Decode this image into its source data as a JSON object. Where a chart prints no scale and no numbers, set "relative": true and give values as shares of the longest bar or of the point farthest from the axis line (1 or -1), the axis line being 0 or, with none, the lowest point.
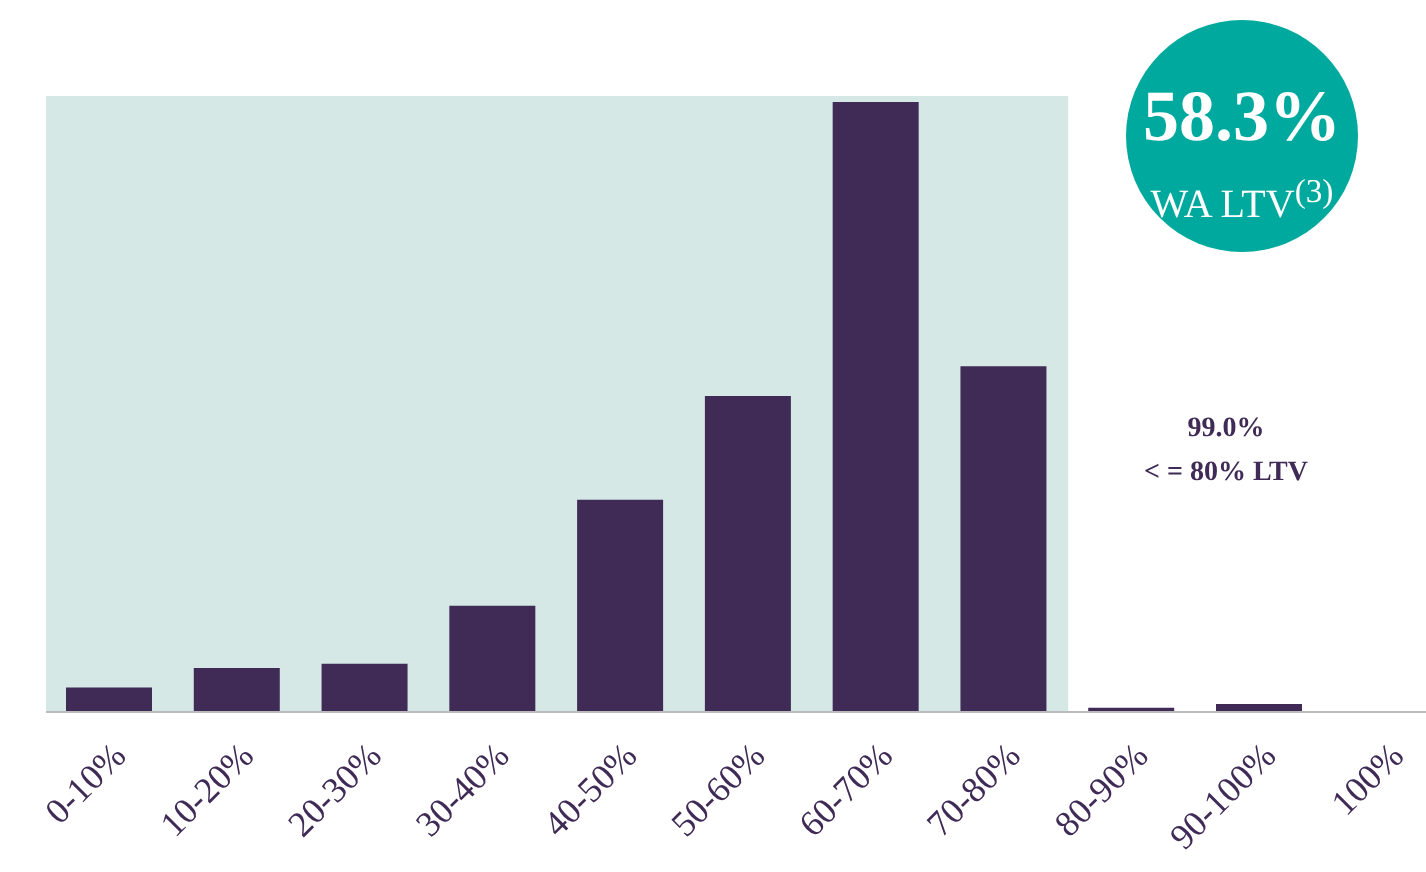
{
  "chart_data": {
    "type": "bar",
    "relative": true,
    "categories": [
      "0-10%",
      "10-20%",
      "20-30%",
      "30-40%",
      "40-50%",
      "50-60%",
      "60-70%",
      "70-80%",
      "80-90%",
      "90-100%",
      "100%"
    ],
    "values": [
      0.04,
      0.072,
      0.079,
      0.174,
      0.348,
      0.518,
      1,
      0.567,
      0.007,
      0.013,
      0
    ],
    "color": "#3f2b56",
    "bands": [
      {
        "axis": "x",
        "from": "0-10%",
        "to": "70-80%",
        "color": "#d5e8e5"
      }
    ],
    "annotations": [
      "58.3%",
      "WA LTV$^{(3)}$",
      "99.0%",
      "< = 80% LTV"
    ],
    "grid": false,
    "legend": false
  }
}
